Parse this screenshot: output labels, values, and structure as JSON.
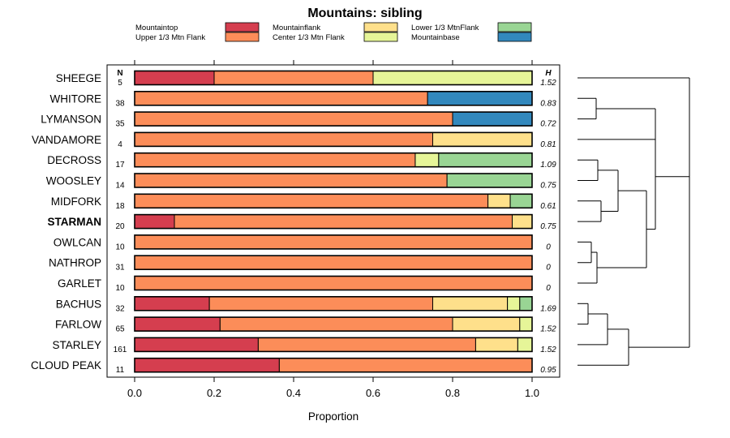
{
  "chart_data": {
    "type": "bar",
    "stacked": true,
    "orientation": "horizontal",
    "title": "Mountains: sibling",
    "xlabel": "Proportion",
    "xlim": [
      0,
      1
    ],
    "xticks": [
      "0.0",
      "0.2",
      "0.4",
      "0.6",
      "0.8",
      "1.0"
    ],
    "n_header": "N",
    "h_header": "H",
    "highlight": "STARMAN",
    "series": [
      {
        "name": "Mountaintop",
        "color": "#d53e4f"
      },
      {
        "name": "Upper 1/3 Mtn Flank",
        "color": "#fc8d59"
      },
      {
        "name": "Center 1/3 Mtn Flank",
        "color": "#fc8d59"
      },
      {
        "name": "Mountainflank",
        "color": "#fee08b"
      },
      {
        "name": "Mountainbase",
        "color": "#e6f598"
      },
      {
        "name": "Lower 1/3 MtnFlank",
        "color": "#99d594"
      },
      {
        "name": "Mountainbase",
        "color": "#3288bd"
      }
    ],
    "legend": [
      {
        "label": "Mountaintop",
        "color": "#d53e4f"
      },
      {
        "label": "Upper 1/3 Mtn Flank",
        "color": "#fc8d59"
      },
      {
        "label": "Mountainflank",
        "color": "#fee08b"
      },
      {
        "label": "Center 1/3 Mtn Flank",
        "color": "#e6f598"
      },
      {
        "label": "Lower 1/3 MtnFlank",
        "color": "#99d594"
      },
      {
        "label": "Mountainbase",
        "color": "#3288bd"
      }
    ],
    "rows": [
      {
        "label": "SHEEGE",
        "n": "5",
        "h": "1.52",
        "segments": [
          {
            "c": "#d53e4f",
            "v": 0.2
          },
          {
            "c": "#fc8d59",
            "v": 0.4
          },
          {
            "c": "#e6f598",
            "v": 0.4
          }
        ]
      },
      {
        "label": "WHITORE",
        "n": "38",
        "h": "0.83",
        "segments": [
          {
            "c": "#fc8d59",
            "v": 0.737
          },
          {
            "c": "#3288bd",
            "v": 0.263
          }
        ]
      },
      {
        "label": "LYMANSON",
        "n": "35",
        "h": "0.72",
        "segments": [
          {
            "c": "#fc8d59",
            "v": 0.8
          },
          {
            "c": "#3288bd",
            "v": 0.2
          }
        ]
      },
      {
        "label": "VANDAMORE",
        "n": "4",
        "h": "0.81",
        "segments": [
          {
            "c": "#fc8d59",
            "v": 0.75
          },
          {
            "c": "#fee08b",
            "v": 0.25
          }
        ]
      },
      {
        "label": "DECROSS",
        "n": "17",
        "h": "1.09",
        "segments": [
          {
            "c": "#fc8d59",
            "v": 0.706
          },
          {
            "c": "#e6f598",
            "v": 0.059
          },
          {
            "c": "#99d594",
            "v": 0.235
          }
        ]
      },
      {
        "label": "WOOSLEY",
        "n": "14",
        "h": "0.75",
        "segments": [
          {
            "c": "#fc8d59",
            "v": 0.786
          },
          {
            "c": "#99d594",
            "v": 0.214
          }
        ]
      },
      {
        "label": "MIDFORK",
        "n": "18",
        "h": "0.61",
        "segments": [
          {
            "c": "#fc8d59",
            "v": 0.889
          },
          {
            "c": "#fee08b",
            "v": 0.056
          },
          {
            "c": "#99d594",
            "v": 0.055
          }
        ]
      },
      {
        "label": "STARMAN",
        "n": "20",
        "h": "0.75",
        "segments": [
          {
            "c": "#d53e4f",
            "v": 0.1
          },
          {
            "c": "#fc8d59",
            "v": 0.85
          },
          {
            "c": "#fee08b",
            "v": 0.05
          }
        ]
      },
      {
        "label": "OWLCAN",
        "n": "10",
        "h": "0",
        "segments": [
          {
            "c": "#fc8d59",
            "v": 1.0
          }
        ]
      },
      {
        "label": "NATHROP",
        "n": "31",
        "h": "0",
        "segments": [
          {
            "c": "#fc8d59",
            "v": 1.0
          }
        ]
      },
      {
        "label": "GARLET",
        "n": "10",
        "h": "0",
        "segments": [
          {
            "c": "#fc8d59",
            "v": 1.0
          }
        ]
      },
      {
        "label": "BACHUS",
        "n": "32",
        "h": "1.69",
        "segments": [
          {
            "c": "#d53e4f",
            "v": 0.188
          },
          {
            "c": "#fc8d59",
            "v": 0.562
          },
          {
            "c": "#fee08b",
            "v": 0.188
          },
          {
            "c": "#e6f598",
            "v": 0.031
          },
          {
            "c": "#99d594",
            "v": 0.031
          }
        ]
      },
      {
        "label": "FARLOW",
        "n": "65",
        "h": "1.52",
        "segments": [
          {
            "c": "#d53e4f",
            "v": 0.215
          },
          {
            "c": "#fc8d59",
            "v": 0.585
          },
          {
            "c": "#fee08b",
            "v": 0.169
          },
          {
            "c": "#e6f598",
            "v": 0.031
          }
        ]
      },
      {
        "label": "STARLEY",
        "n": "161",
        "h": "1.52",
        "segments": [
          {
            "c": "#d53e4f",
            "v": 0.311
          },
          {
            "c": "#fc8d59",
            "v": 0.547
          },
          {
            "c": "#fee08b",
            "v": 0.106
          },
          {
            "c": "#e6f598",
            "v": 0.036
          }
        ]
      },
      {
        "label": "CLOUD PEAK",
        "n": "11",
        "h": "0.95",
        "segments": [
          {
            "c": "#d53e4f",
            "v": 0.364
          },
          {
            "c": "#fc8d59",
            "v": 0.636
          }
        ]
      }
    ]
  }
}
